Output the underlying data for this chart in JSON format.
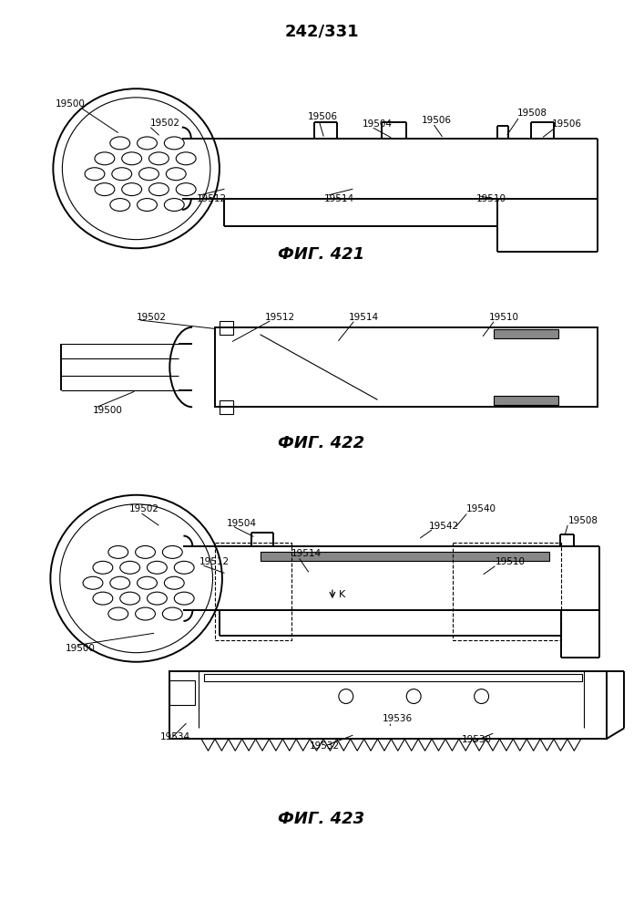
{
  "title": "242/331",
  "fig421_label": "ФИГ. 421",
  "fig422_label": "ФИГ. 422",
  "fig423_label": "ФИГ. 423",
  "bg_color": "#ffffff",
  "lc": "#000000",
  "gray": "#888888",
  "lw_main": 1.4,
  "lw_thin": 0.8,
  "lw_med": 1.0,
  "fs_label": 7.5,
  "fs_fig": 13,
  "fs_title": 13
}
